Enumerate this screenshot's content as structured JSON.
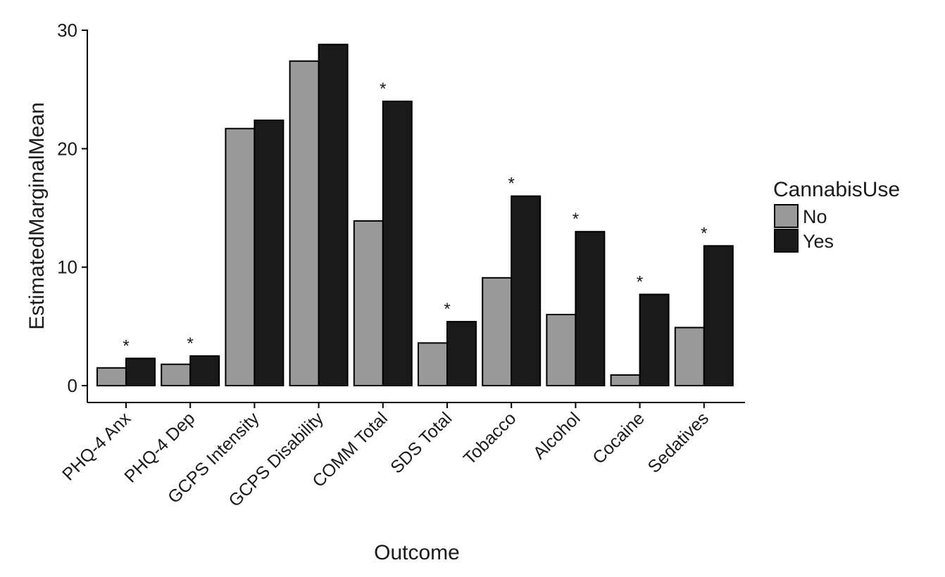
{
  "chart_data": {
    "type": "bar",
    "title": "",
    "xlabel": "Outcome",
    "ylabel": "EstimatedMarginalMean",
    "ylim": [
      0,
      30
    ],
    "yticks": [
      0,
      10,
      20,
      30
    ],
    "categories": [
      "PHQ-4 Anx",
      "PHQ-4 Dep",
      "GCPS Intensity",
      "GCPS Disability",
      "COMM Total",
      "SDS Total",
      "Tobacco",
      "Alcohol",
      "Cocaine",
      "Sedatives"
    ],
    "series": [
      {
        "name": "No",
        "color": "#999999",
        "values": [
          1.5,
          1.8,
          21.7,
          27.4,
          13.9,
          3.6,
          9.1,
          6.0,
          0.9,
          4.9
        ]
      },
      {
        "name": "Yes",
        "color": "#1a1a1a",
        "values": [
          2.3,
          2.5,
          22.4,
          28.8,
          24.0,
          5.4,
          16.0,
          13.0,
          7.7,
          11.8
        ]
      }
    ],
    "significance_marks": [
      "*",
      "*",
      "",
      "",
      "*",
      "*",
      "*",
      "*",
      "*",
      "*"
    ],
    "legend": {
      "title": "CannabisUse",
      "placement": "right",
      "labels": [
        "No",
        "Yes"
      ]
    },
    "grid": false
  }
}
